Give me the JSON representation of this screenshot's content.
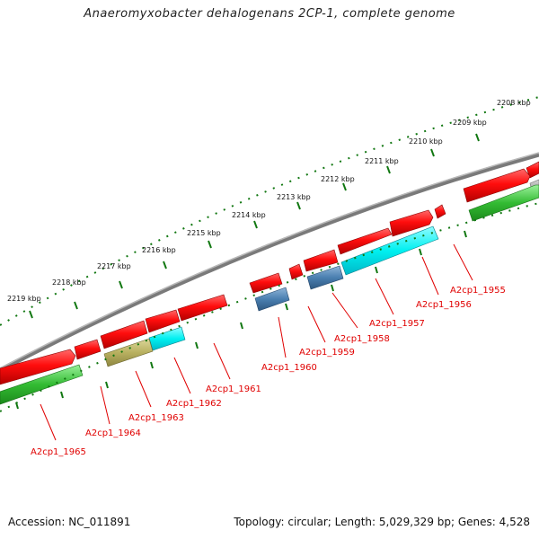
{
  "title": "Anaeromyxobacter dehalogenans 2CP-1, complete genome",
  "footer": {
    "accession": "Accession: NC_011891",
    "summary": "Topology: circular; Length: 5,029,329 bp; Genes: 4,528"
  },
  "colors": {
    "backbone": "#8a8a8a",
    "forward_gene": "#ff1010",
    "cds_highlight": "#00f0f0",
    "cds_steel": "#4a7fb0",
    "cds_olive": "#b8b060",
    "green_track": "#33bb33",
    "label": "#e00000",
    "tick": "#117711"
  },
  "kbp_labels": [
    "2208 kbp",
    "2209 kbp",
    "2210 kbp",
    "2211 kbp",
    "2212 kbp",
    "2213 kbp",
    "2214 kbp",
    "2215 kbp",
    "2216 kbp",
    "2217 kbp",
    "2218 kbp",
    "2219 kbp"
  ],
  "gene_labels": [
    "A2cp1_1955",
    "A2cp1_1956",
    "A2cp1_1957",
    "A2cp1_1958",
    "A2cp1_1959",
    "A2cp1_1960",
    "A2cp1_1961",
    "A2cp1_1962",
    "A2cp1_1963",
    "A2cp1_1964",
    "A2cp1_1965"
  ]
}
